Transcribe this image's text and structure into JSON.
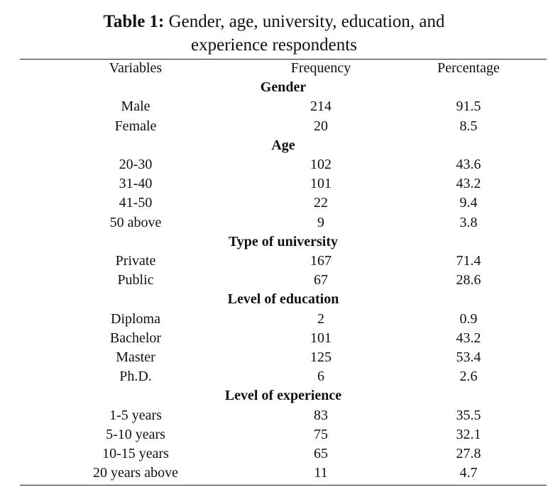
{
  "caption": {
    "label": "Table 1:",
    "line1": "Gender, age, university, education, and",
    "line2": "experience respondents"
  },
  "table": {
    "headers": [
      "Variables",
      "Frequency",
      "Percentage"
    ],
    "groups": [
      {
        "title": "Gender",
        "rows": [
          [
            "Male",
            "214",
            "91.5"
          ],
          [
            "Female",
            "20",
            "8.5"
          ]
        ]
      },
      {
        "title": "Age",
        "rows": [
          [
            "20-30",
            "102",
            "43.6"
          ],
          [
            "31-40",
            "101",
            "43.2"
          ],
          [
            "41-50",
            "22",
            "9.4"
          ],
          [
            "50 above",
            "9",
            "3.8"
          ]
        ]
      },
      {
        "title": "Type of university",
        "rows": [
          [
            "Private",
            "167",
            "71.4"
          ],
          [
            "Public",
            "67",
            "28.6"
          ]
        ]
      },
      {
        "title": "Level of education",
        "rows": [
          [
            "Diploma",
            "2",
            "0.9"
          ],
          [
            "Bachelor",
            "101",
            "43.2"
          ],
          [
            "Master",
            "125",
            "53.4"
          ],
          [
            "Ph.D.",
            "6",
            "2.6"
          ]
        ]
      },
      {
        "title": "Level of experience",
        "rows": [
          [
            "1-5 years",
            "83",
            "35.5"
          ],
          [
            "5-10 years",
            "75",
            "32.1"
          ],
          [
            "10-15 years",
            "65",
            "27.8"
          ],
          [
            "20 years above",
            "11",
            "4.7"
          ]
        ]
      }
    ]
  }
}
